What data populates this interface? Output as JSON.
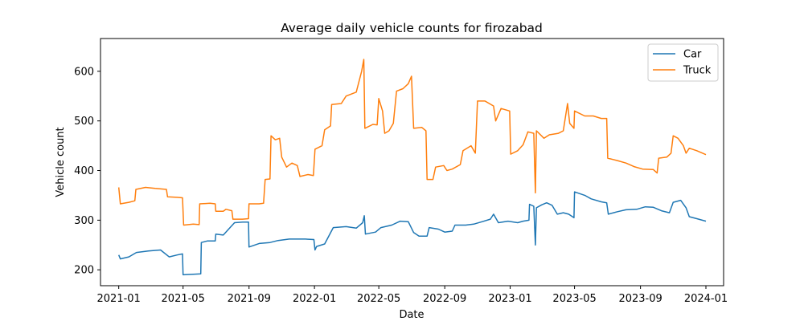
{
  "chart_data": {
    "type": "line",
    "title": "Average daily vehicle counts for firozabad",
    "xlabel": "Date",
    "ylabel": "Vehicle count",
    "xlim": [
      "2020-11-28",
      "2024-02-03"
    ],
    "ylim": [
      168,
      666
    ],
    "x_ticks": [
      "2021-01",
      "2021-05",
      "2021-09",
      "2022-01",
      "2022-05",
      "2022-09",
      "2023-01",
      "2023-05",
      "2023-09",
      "2024-01"
    ],
    "y_ticks": [
      200,
      300,
      400,
      500,
      600
    ],
    "grid": false,
    "legend": "top-right",
    "series": [
      {
        "name": "Car",
        "color": "#1f77b4",
        "points": [
          [
            "2021-01-01",
            230
          ],
          [
            "2021-01-04",
            222
          ],
          [
            "2021-01-20",
            226
          ],
          [
            "2021-02-03",
            235
          ],
          [
            "2021-02-25",
            238
          ],
          [
            "2021-03-20",
            240
          ],
          [
            "2021-04-05",
            226
          ],
          [
            "2021-04-20",
            230
          ],
          [
            "2021-04-30",
            232
          ],
          [
            "2021-05-01",
            190
          ],
          [
            "2021-05-20",
            191
          ],
          [
            "2021-06-03",
            192
          ],
          [
            "2021-06-04",
            255
          ],
          [
            "2021-06-15",
            258
          ],
          [
            "2021-06-30",
            258
          ],
          [
            "2021-07-01",
            272
          ],
          [
            "2021-07-15",
            270
          ],
          [
            "2021-07-25",
            282
          ],
          [
            "2021-08-05",
            295
          ],
          [
            "2021-08-20",
            296
          ],
          [
            "2021-08-31",
            296
          ],
          [
            "2021-09-01",
            246
          ],
          [
            "2021-09-20",
            253
          ],
          [
            "2021-10-10",
            255
          ],
          [
            "2021-10-25",
            259
          ],
          [
            "2021-11-15",
            262
          ],
          [
            "2021-12-15",
            262
          ],
          [
            "2021-12-31",
            261
          ],
          [
            "2022-01-02",
            240
          ],
          [
            "2022-01-05",
            247
          ],
          [
            "2022-01-20",
            252
          ],
          [
            "2022-02-05",
            285
          ],
          [
            "2022-03-01",
            287
          ],
          [
            "2022-03-20",
            284
          ],
          [
            "2022-04-01",
            295
          ],
          [
            "2022-04-04",
            309
          ],
          [
            "2022-04-06",
            272
          ],
          [
            "2022-04-25",
            276
          ],
          [
            "2022-05-05",
            285
          ],
          [
            "2022-05-25",
            290
          ],
          [
            "2022-06-10",
            298
          ],
          [
            "2022-06-25",
            297
          ],
          [
            "2022-07-05",
            275
          ],
          [
            "2022-07-15",
            268
          ],
          [
            "2022-07-30",
            268
          ],
          [
            "2022-08-03",
            285
          ],
          [
            "2022-08-20",
            282
          ],
          [
            "2022-09-01",
            276
          ],
          [
            "2022-09-15",
            278
          ],
          [
            "2022-09-20",
            290
          ],
          [
            "2022-10-10",
            290
          ],
          [
            "2022-10-25",
            292
          ],
          [
            "2022-11-10",
            297
          ],
          [
            "2022-11-25",
            302
          ],
          [
            "2022-12-01",
            312
          ],
          [
            "2022-12-10",
            295
          ],
          [
            "2022-12-28",
            298
          ],
          [
            "2023-01-15",
            295
          ],
          [
            "2023-01-25",
            298
          ],
          [
            "2023-02-05",
            300
          ],
          [
            "2023-02-06",
            332
          ],
          [
            "2023-02-14",
            328
          ],
          [
            "2023-02-17",
            250
          ],
          [
            "2023-02-19",
            325
          ],
          [
            "2023-03-01",
            331
          ],
          [
            "2023-03-10",
            335
          ],
          [
            "2023-03-20",
            330
          ],
          [
            "2023-03-30",
            312
          ],
          [
            "2023-04-10",
            315
          ],
          [
            "2023-04-20",
            312
          ],
          [
            "2023-04-30",
            305
          ],
          [
            "2023-05-01",
            357
          ],
          [
            "2023-05-20",
            350
          ],
          [
            "2023-06-01",
            343
          ],
          [
            "2023-06-20",
            337
          ],
          [
            "2023-06-30",
            335
          ],
          [
            "2023-07-03",
            312
          ],
          [
            "2023-07-20",
            317
          ],
          [
            "2023-08-05",
            321
          ],
          [
            "2023-08-25",
            322
          ],
          [
            "2023-09-10",
            327
          ],
          [
            "2023-09-25",
            326
          ],
          [
            "2023-10-10",
            319
          ],
          [
            "2023-10-25",
            315
          ],
          [
            "2023-11-01",
            336
          ],
          [
            "2023-11-15",
            340
          ],
          [
            "2023-11-25",
            325
          ],
          [
            "2023-12-01",
            307
          ],
          [
            "2023-12-15",
            303
          ],
          [
            "2024-01-01",
            298
          ]
        ]
      },
      {
        "name": "Truck",
        "color": "#ff7f0e",
        "points": [
          [
            "2021-01-01",
            366
          ],
          [
            "2021-01-04",
            333
          ],
          [
            "2021-01-20",
            336
          ],
          [
            "2021-01-31",
            339
          ],
          [
            "2021-02-02",
            362
          ],
          [
            "2021-02-20",
            366
          ],
          [
            "2021-03-10",
            364
          ],
          [
            "2021-03-31",
            362
          ],
          [
            "2021-04-02",
            347
          ],
          [
            "2021-04-20",
            346
          ],
          [
            "2021-04-30",
            345
          ],
          [
            "2021-05-02",
            290
          ],
          [
            "2021-05-20",
            292
          ],
          [
            "2021-05-31",
            291
          ],
          [
            "2021-06-01",
            333
          ],
          [
            "2021-06-20",
            334
          ],
          [
            "2021-06-30",
            333
          ],
          [
            "2021-07-01",
            318
          ],
          [
            "2021-07-15",
            318
          ],
          [
            "2021-07-20",
            322
          ],
          [
            "2021-07-31",
            319
          ],
          [
            "2021-08-02",
            302
          ],
          [
            "2021-08-20",
            302
          ],
          [
            "2021-08-31",
            303
          ],
          [
            "2021-09-01",
            333
          ],
          [
            "2021-09-20",
            333
          ],
          [
            "2021-09-28",
            334
          ],
          [
            "2021-10-01",
            382
          ],
          [
            "2021-10-10",
            383
          ],
          [
            "2021-10-12",
            470
          ],
          [
            "2021-10-20",
            462
          ],
          [
            "2021-10-28",
            465
          ],
          [
            "2021-11-01",
            427
          ],
          [
            "2021-11-10",
            407
          ],
          [
            "2021-11-20",
            415
          ],
          [
            "2021-11-30",
            410
          ],
          [
            "2021-12-05",
            388
          ],
          [
            "2021-12-20",
            392
          ],
          [
            "2021-12-30",
            390
          ],
          [
            "2022-01-02",
            443
          ],
          [
            "2022-01-15",
            450
          ],
          [
            "2022-01-20",
            482
          ],
          [
            "2022-01-31",
            490
          ],
          [
            "2022-02-02",
            533
          ],
          [
            "2022-02-20",
            535
          ],
          [
            "2022-03-01",
            550
          ],
          [
            "2022-03-20",
            558
          ],
          [
            "2022-03-30",
            600
          ],
          [
            "2022-04-03",
            624
          ],
          [
            "2022-04-05",
            485
          ],
          [
            "2022-04-20",
            493
          ],
          [
            "2022-04-28",
            492
          ],
          [
            "2022-05-01",
            545
          ],
          [
            "2022-05-08",
            520
          ],
          [
            "2022-05-12",
            475
          ],
          [
            "2022-05-20",
            480
          ],
          [
            "2022-05-28",
            495
          ],
          [
            "2022-06-03",
            560
          ],
          [
            "2022-06-15",
            565
          ],
          [
            "2022-06-25",
            575
          ],
          [
            "2022-07-01",
            590
          ],
          [
            "2022-07-05",
            485
          ],
          [
            "2022-07-20",
            487
          ],
          [
            "2022-07-28",
            480
          ],
          [
            "2022-07-30",
            382
          ],
          [
            "2022-08-10",
            382
          ],
          [
            "2022-08-15",
            407
          ],
          [
            "2022-08-30",
            410
          ],
          [
            "2022-09-05",
            400
          ],
          [
            "2022-09-15",
            403
          ],
          [
            "2022-09-30",
            412
          ],
          [
            "2022-10-05",
            440
          ],
          [
            "2022-10-20",
            450
          ],
          [
            "2022-10-28",
            435
          ],
          [
            "2022-11-01",
            540
          ],
          [
            "2022-11-15",
            540
          ],
          [
            "2022-12-01",
            530
          ],
          [
            "2022-12-05",
            500
          ],
          [
            "2022-12-15",
            525
          ],
          [
            "2022-12-31",
            520
          ],
          [
            "2023-01-02",
            433
          ],
          [
            "2023-01-15",
            440
          ],
          [
            "2023-01-25",
            452
          ],
          [
            "2023-02-03",
            478
          ],
          [
            "2023-02-14",
            475
          ],
          [
            "2023-02-17",
            355
          ],
          [
            "2023-02-19",
            480
          ],
          [
            "2023-03-05",
            465
          ],
          [
            "2023-03-15",
            472
          ],
          [
            "2023-04-01",
            475
          ],
          [
            "2023-04-10",
            480
          ],
          [
            "2023-04-18",
            535
          ],
          [
            "2023-04-22",
            495
          ],
          [
            "2023-04-30",
            485
          ],
          [
            "2023-05-01",
            520
          ],
          [
            "2023-05-20",
            510
          ],
          [
            "2023-06-05",
            510
          ],
          [
            "2023-06-20",
            505
          ],
          [
            "2023-06-30",
            505
          ],
          [
            "2023-07-02",
            425
          ],
          [
            "2023-07-20",
            420
          ],
          [
            "2023-08-05",
            415
          ],
          [
            "2023-08-20",
            408
          ],
          [
            "2023-09-05",
            403
          ],
          [
            "2023-09-25",
            402
          ],
          [
            "2023-10-02",
            395
          ],
          [
            "2023-10-05",
            425
          ],
          [
            "2023-10-20",
            427
          ],
          [
            "2023-10-28",
            435
          ],
          [
            "2023-11-01",
            470
          ],
          [
            "2023-11-10",
            465
          ],
          [
            "2023-11-20",
            450
          ],
          [
            "2023-11-25",
            435
          ],
          [
            "2023-12-01",
            445
          ],
          [
            "2023-12-15",
            440
          ],
          [
            "2024-01-01",
            432
          ]
        ]
      }
    ]
  }
}
